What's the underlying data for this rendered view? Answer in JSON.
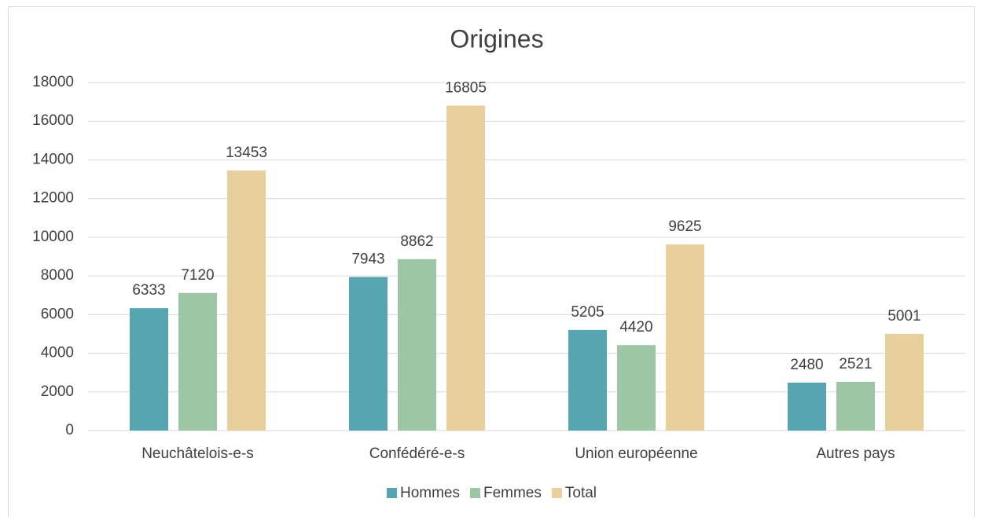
{
  "chart_data": {
    "type": "bar",
    "title": "Origines",
    "categories": [
      "Neuchâtelois-e-s",
      "Confédéré-e-s",
      "Union européenne",
      "Autres pays"
    ],
    "series": [
      {
        "name": "Hommes",
        "color": "#56a5b0",
        "values": [
          6333,
          7943,
          5205,
          2480
        ]
      },
      {
        "name": "Femmes",
        "color": "#9dc6a4",
        "values": [
          7120,
          8862,
          4420,
          2521
        ]
      },
      {
        "name": "Total",
        "color": "#e8d09c",
        "values": [
          13453,
          16805,
          9625,
          5001
        ]
      }
    ],
    "ylim": [
      0,
      18000
    ],
    "yticks": [
      0,
      2000,
      4000,
      6000,
      8000,
      10000,
      12000,
      14000,
      16000,
      18000
    ],
    "grid": true,
    "legend": "bottom"
  }
}
